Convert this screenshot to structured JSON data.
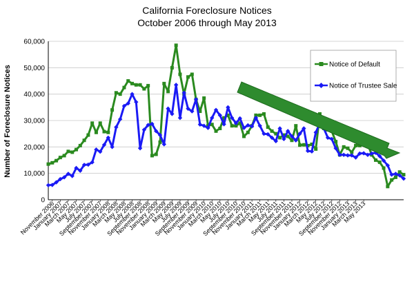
{
  "chart_data": {
    "type": "line",
    "title_lines": [
      "California Foreclosure Notices",
      "October 2006 through May 2013"
    ],
    "xlabel": "",
    "ylabel": "Number of Foreclosure Notices",
    "ylim": [
      0,
      60000
    ],
    "yticks": [
      0,
      10000,
      20000,
      30000,
      40000,
      50000,
      60000
    ],
    "ytick_labels": [
      "0",
      "10,000",
      "20,000",
      "30,000",
      "40,000",
      "50,000",
      "60,000"
    ],
    "x_labels": [
      "November 2006",
      "January 2007",
      "March 2007",
      "May 2007",
      "July 2007",
      "September 2007",
      "November 2007",
      "January 2008",
      "March 2008",
      "May 2008",
      "July 2008",
      "September 2008",
      "November 2008",
      "January 2009",
      "March 2009",
      "May 2009",
      "July 2009",
      "September 2009",
      "November 2009",
      "January 2010",
      "March 2010",
      "May 2010",
      "July 2010",
      "September 2010",
      "November 2010",
      "January 2011",
      "March 2011",
      "May 2011",
      "July 2011",
      "September 2011",
      "November 2011",
      "January 2012",
      "March 2012",
      "May 2012",
      "July 2012",
      "September 2012",
      "November 2012",
      "January 2013",
      "March 2013",
      "May 2013"
    ],
    "x_label_month_index": [
      1,
      3,
      5,
      7,
      9,
      11,
      13,
      15,
      17,
      19,
      21,
      23,
      25,
      27,
      29,
      31,
      33,
      35,
      37,
      39,
      41,
      43,
      45,
      47,
      49,
      51,
      53,
      55,
      57,
      59,
      61,
      63,
      65,
      67,
      69,
      71,
      73,
      75,
      77,
      79
    ],
    "grid": "horizontal",
    "legend_position": "top-right",
    "series": [
      {
        "name": "Notice of Default",
        "color": "#2a8a1f",
        "marker": "square",
        "values": [
          13500,
          14000,
          14800,
          16000,
          16700,
          18300,
          18000,
          19000,
          20500,
          22500,
          24500,
          29000,
          25500,
          29000,
          25800,
          25500,
          34000,
          40500,
          40000,
          42500,
          45000,
          44000,
          43500,
          43500,
          42000,
          43200,
          16700,
          17200,
          21800,
          44000,
          41000,
          50000,
          58500,
          47500,
          40000,
          46500,
          47500,
          38000,
          33500,
          38500,
          28000,
          28500,
          26000,
          27000,
          31000,
          32000,
          28000,
          28000,
          29000,
          24000,
          25500,
          28000,
          32000,
          32000,
          32500,
          27500,
          26000,
          25000,
          23500,
          24500,
          24000,
          22500,
          28000,
          20700,
          20800,
          20500,
          21000,
          19200,
          32500,
          27000,
          26500,
          26000,
          22000,
          17000,
          20000,
          19500,
          18000,
          20500,
          20500,
          21000,
          21200,
          17000,
          15000,
          14200,
          12000,
          5000,
          7500,
          8500,
          10500,
          9500
        ]
      },
      {
        "name": "Notice of Trustee Sale",
        "color": "#1a1af5",
        "marker": "diamond",
        "values": [
          5500,
          5600,
          6600,
          7800,
          8500,
          9800,
          9000,
          12000,
          11000,
          13200,
          13300,
          14200,
          19000,
          18200,
          20800,
          23500,
          20000,
          27500,
          30500,
          35500,
          36500,
          40000,
          37000,
          19500,
          26500,
          28300,
          28700,
          26000,
          24500,
          21000,
          34500,
          32500,
          43500,
          31000,
          40500,
          34500,
          33500,
          38000,
          28500,
          28000,
          27200,
          31000,
          34000,
          32000,
          28600,
          35000,
          31000,
          29000,
          30800,
          27200,
          28200,
          27800,
          31000,
          28000,
          25000,
          24800,
          23500,
          22200,
          27000,
          23000,
          26000,
          24000,
          22500,
          25000,
          27000,
          18500,
          18300,
          25500,
          29000,
          27000,
          23500,
          23000,
          19500,
          17000,
          17000,
          16800,
          16800,
          16000,
          17500,
          17600,
          17000,
          17500,
          17800,
          16500,
          14800,
          13000,
          9500,
          9800,
          9200,
          8000
        ]
      }
    ]
  }
}
